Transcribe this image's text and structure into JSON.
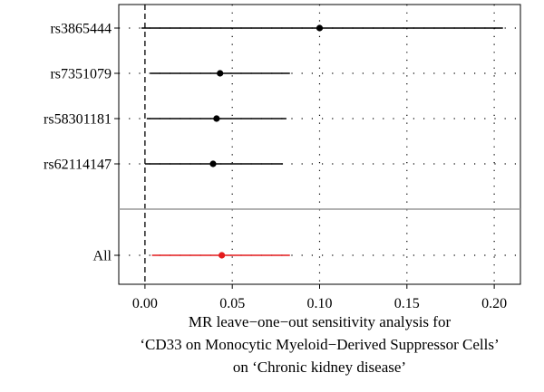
{
  "chart_data": {
    "type": "scatter",
    "subtype": "forest-plot",
    "title": "",
    "xlabel_lines": [
      "MR leave−one−out sensitivity analysis for",
      "‘CD33 on Monocytic Myeloid−Derived Suppressor Cells’",
      "on ‘Chronic kidney disease’"
    ],
    "ylabel": "",
    "xlim": [
      -0.015,
      0.215
    ],
    "xticks": [
      0.0,
      0.05,
      0.1,
      0.15,
      0.2
    ],
    "xtick_labels": [
      "0.00",
      "0.05",
      "0.10",
      "0.15",
      "0.20"
    ],
    "reference_line_x": 0,
    "grid": "dotted",
    "legend": "none",
    "snps": [
      {
        "label": "rs3865444",
        "estimate": 0.1,
        "ci_low": -0.002,
        "ci_high": 0.205
      },
      {
        "label": "rs7351079",
        "estimate": 0.043,
        "ci_low": 0.003,
        "ci_high": 0.083
      },
      {
        "label": "rs58301181",
        "estimate": 0.041,
        "ci_low": 0.001,
        "ci_high": 0.081
      },
      {
        "label": "rs62114147",
        "estimate": 0.039,
        "ci_low": 0.0,
        "ci_high": 0.079
      }
    ],
    "overall": {
      "label": "All",
      "estimate": 0.044,
      "ci_low": 0.004,
      "ci_high": 0.083
    },
    "colors": {
      "snp": "#000000",
      "overall": "#e41a1c",
      "separator": "#999999",
      "grid": "#000000"
    }
  }
}
